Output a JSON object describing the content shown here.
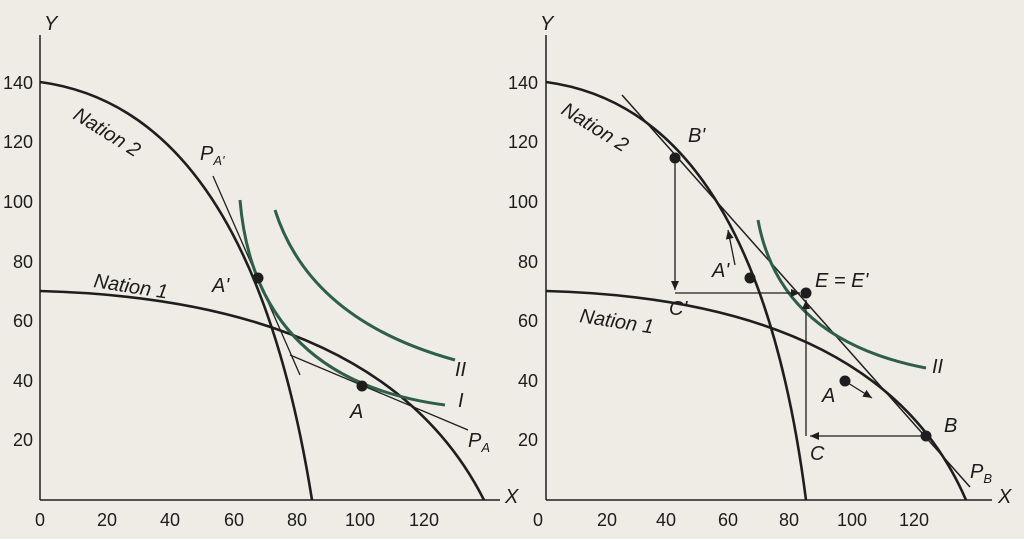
{
  "colors": {
    "ppf": "#1e1e1e",
    "indifference": "#2f5f48",
    "background": "#efece6"
  },
  "left_panel": {
    "y_axis_label": "Y",
    "x_axis_label": "X",
    "x_ticks": [
      "0",
      "20",
      "40",
      "60",
      "80",
      "100",
      "120"
    ],
    "y_ticks": [
      "20",
      "40",
      "60",
      "80",
      "100",
      "120",
      "140"
    ],
    "nation2_label": "Nation 2",
    "nation1_label": "Nation 1",
    "price_line_A_prime": {
      "main": "P",
      "sub": "A'"
    },
    "price_line_A": {
      "main": "P",
      "sub": "A"
    },
    "point_A_prime": "A'",
    "point_A": "A",
    "curve_II": "II",
    "curve_I": "I"
  },
  "right_panel": {
    "y_axis_label": "Y",
    "x_axis_label": "X",
    "x_ticks": [
      "0",
      "20",
      "40",
      "60",
      "80",
      "100",
      "120"
    ],
    "y_ticks": [
      "20",
      "40",
      "60",
      "80",
      "100",
      "120",
      "140"
    ],
    "nation2_label": "Nation 2",
    "nation1_label": "Nation 1",
    "point_B_prime": "B'",
    "point_A_prime": "A'",
    "point_C_prime": "C'",
    "point_E": "E = E'",
    "point_A": "A",
    "point_B": "B",
    "point_C": "C",
    "price_line_B": {
      "main": "P",
      "sub": "B"
    },
    "curve_II": "II"
  }
}
